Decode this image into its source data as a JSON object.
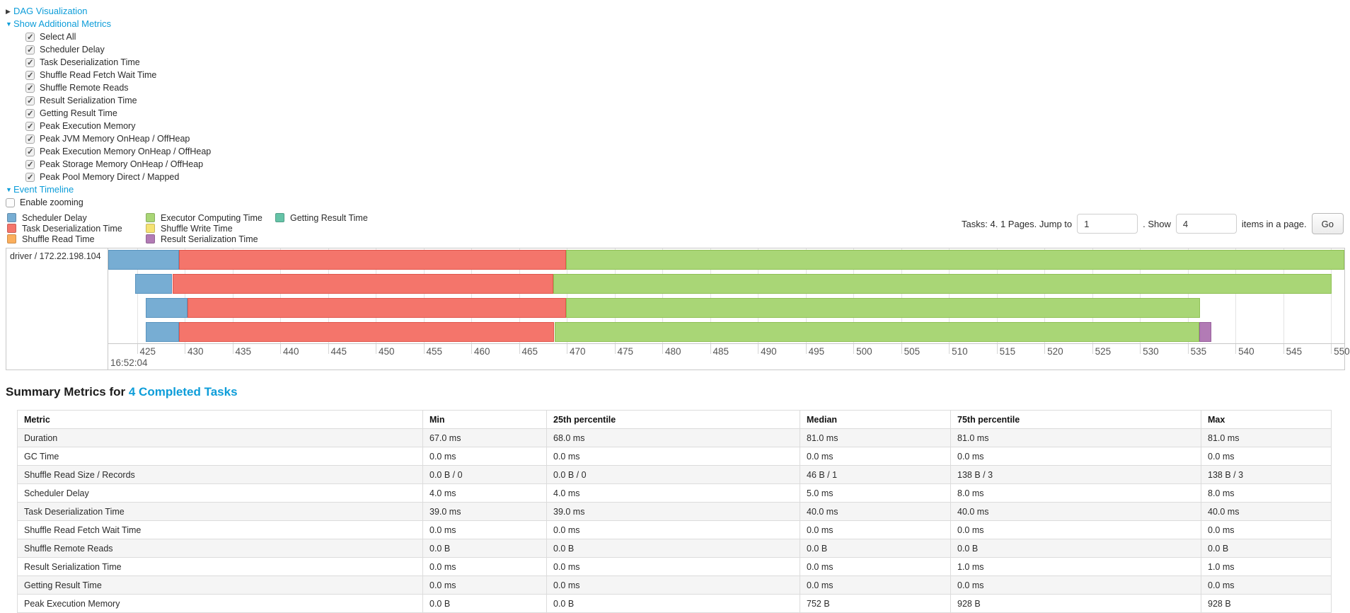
{
  "colors": {
    "link": "#0D9DD9"
  },
  "expanders": {
    "dag": {
      "arrow": "▶",
      "label": "DAG Visualization"
    },
    "metrics": {
      "arrow": "▼",
      "label": "Show Additional Metrics"
    },
    "timeline": {
      "arrow": "▼",
      "label": "Event Timeline"
    }
  },
  "metric_checkboxes": [
    {
      "label": "Select All",
      "checked": true
    },
    {
      "label": "Scheduler Delay",
      "checked": true
    },
    {
      "label": "Task Deserialization Time",
      "checked": true
    },
    {
      "label": "Shuffle Read Fetch Wait Time",
      "checked": true
    },
    {
      "label": "Shuffle Remote Reads",
      "checked": true
    },
    {
      "label": "Result Serialization Time",
      "checked": true
    },
    {
      "label": "Getting Result Time",
      "checked": true
    },
    {
      "label": "Peak Execution Memory",
      "checked": true
    },
    {
      "label": "Peak JVM Memory OnHeap / OffHeap",
      "checked": true
    },
    {
      "label": "Peak Execution Memory OnHeap / OffHeap",
      "checked": true
    },
    {
      "label": "Peak Storage Memory OnHeap / OffHeap",
      "checked": true
    },
    {
      "label": "Peak Pool Memory Direct / Mapped",
      "checked": true
    }
  ],
  "enable_zooming": {
    "label": "Enable zooming",
    "checked": false
  },
  "legend": {
    "columns": [
      [
        {
          "key": "scheduler_delay",
          "label": "Scheduler Delay"
        },
        {
          "key": "task_deserialization",
          "label": "Task Deserialization Time"
        },
        {
          "key": "shuffle_read",
          "label": "Shuffle Read Time"
        }
      ],
      [
        {
          "key": "executor_computing",
          "label": "Executor Computing Time"
        },
        {
          "key": "shuffle_write",
          "label": "Shuffle Write Time"
        },
        {
          "key": "result_serialization",
          "label": "Result Serialization Time"
        }
      ],
      [
        {
          "key": "getting_result",
          "label": "Getting Result Time"
        }
      ]
    ]
  },
  "pagination": {
    "text_before": "Tasks: 4. 1 Pages. Jump to",
    "jump_value": "1",
    "text_mid": ". Show",
    "show_value": "4",
    "text_after": "items in a page.",
    "go_label": "Go"
  },
  "chart_data": {
    "type": "timeline",
    "row_label": "driver / 172.22.198.104",
    "axis": {
      "min": 422.0,
      "max": 551.4,
      "tick_start": 425,
      "tick_end": 550,
      "tick_step": 5,
      "unit": "ms within second",
      "major_label": "16:52:04"
    },
    "palette": {
      "scheduler_delay": {
        "fill": "#77ADD3",
        "border": "#5A94BE"
      },
      "task_deserialization": {
        "fill": "#F4756B",
        "border": "#E0564C"
      },
      "shuffle_read": {
        "fill": "#FBAE5C",
        "border": "#E8943F"
      },
      "executor_computing": {
        "fill": "#A9D676",
        "border": "#8FC055"
      },
      "shuffle_write": {
        "fill": "#F5E273",
        "border": "#DCC94F"
      },
      "result_serialization": {
        "fill": "#B27BB5",
        "border": "#98609C"
      },
      "getting_result": {
        "fill": "#65C3A7",
        "border": "#47A98B"
      }
    },
    "tasks": [
      {
        "segments": [
          [
            "scheduler_delay",
            422.0,
            429.4
          ],
          [
            "task_deserialization",
            429.4,
            469.9
          ],
          [
            "executor_computing",
            469.9,
            551.4
          ]
        ]
      },
      {
        "segments": [
          [
            "scheduler_delay",
            424.8,
            428.7
          ],
          [
            "task_deserialization",
            428.7,
            468.6
          ],
          [
            "executor_computing",
            468.6,
            550.1
          ]
        ]
      },
      {
        "segments": [
          [
            "scheduler_delay",
            425.9,
            430.3
          ],
          [
            "task_deserialization",
            430.3,
            469.9
          ],
          [
            "executor_computing",
            469.9,
            536.3
          ]
        ]
      },
      {
        "segments": [
          [
            "scheduler_delay",
            425.9,
            429.4
          ],
          [
            "task_deserialization",
            429.4,
            468.7
          ],
          [
            "executor_computing",
            468.7,
            536.2
          ],
          [
            "result_serialization",
            536.2,
            537.5
          ]
        ]
      }
    ]
  },
  "summary": {
    "heading_prefix": "Summary Metrics for",
    "heading_link": "4 Completed Tasks",
    "columns": [
      "Metric",
      "Min",
      "25th percentile",
      "Median",
      "75th percentile",
      "Max"
    ],
    "rows": [
      [
        "Duration",
        "67.0 ms",
        "68.0 ms",
        "81.0 ms",
        "81.0 ms",
        "81.0 ms"
      ],
      [
        "GC Time",
        "0.0 ms",
        "0.0 ms",
        "0.0 ms",
        "0.0 ms",
        "0.0 ms"
      ],
      [
        "Shuffle Read Size / Records",
        "0.0 B / 0",
        "0.0 B / 0",
        "46 B / 1",
        "138 B / 3",
        "138 B / 3"
      ],
      [
        "Scheduler Delay",
        "4.0 ms",
        "4.0 ms",
        "5.0 ms",
        "8.0 ms",
        "8.0 ms"
      ],
      [
        "Task Deserialization Time",
        "39.0 ms",
        "39.0 ms",
        "40.0 ms",
        "40.0 ms",
        "40.0 ms"
      ],
      [
        "Shuffle Read Fetch Wait Time",
        "0.0 ms",
        "0.0 ms",
        "0.0 ms",
        "0.0 ms",
        "0.0 ms"
      ],
      [
        "Shuffle Remote Reads",
        "0.0 B",
        "0.0 B",
        "0.0 B",
        "0.0 B",
        "0.0 B"
      ],
      [
        "Result Serialization Time",
        "0.0 ms",
        "0.0 ms",
        "0.0 ms",
        "1.0 ms",
        "1.0 ms"
      ],
      [
        "Getting Result Time",
        "0.0 ms",
        "0.0 ms",
        "0.0 ms",
        "0.0 ms",
        "0.0 ms"
      ],
      [
        "Peak Execution Memory",
        "0.0 B",
        "0.0 B",
        "752 B",
        "928 B",
        "928 B"
      ]
    ]
  }
}
